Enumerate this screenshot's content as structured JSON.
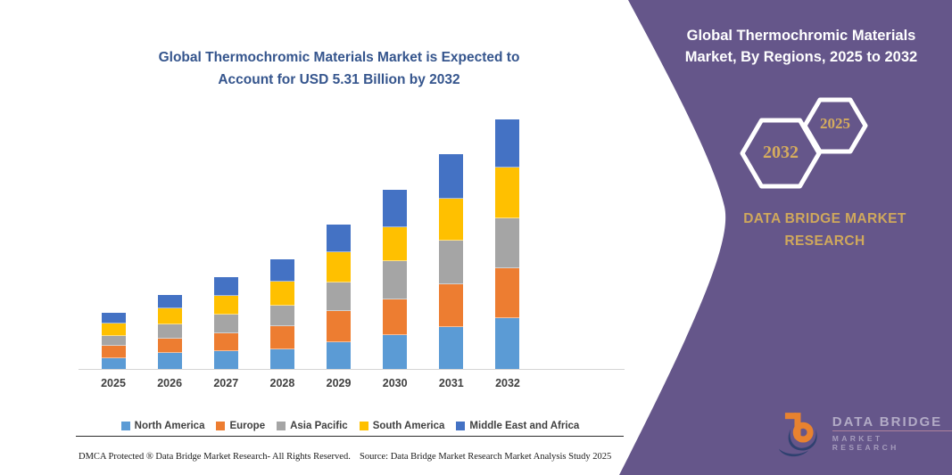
{
  "left_panel": {
    "title_line1": "Global Thermochromic Materials Market is Expected to",
    "title_line2": "Account for USD 5.31 Billion by 2032",
    "footer": {
      "dmca": "DMCA Protected ® Data Bridge Market Research-  All Rights Reserved.",
      "source": "Source: Data Bridge Market Research  Market Analysis Study 2025"
    }
  },
  "right_panel": {
    "background_color": "#65568A",
    "accent_gold": "#CFA85C",
    "title_line1": "Global Thermochromic Materials",
    "title_line2": "Market, By Regions, 2025 to 2032",
    "hexagons": {
      "big_year": "2032",
      "small_year": "2025"
    },
    "brand_line1": "DATA BRIDGE MARKET",
    "brand_line2": "RESEARCH",
    "logo": {
      "icon": "data-bridge-db-monogram-icon",
      "text_line1": "DATA BRIDGE",
      "text_line2": "MARKET RESEARCH"
    }
  },
  "chart_data": {
    "type": "bar",
    "stacked": true,
    "title": "Global Thermochromic Materials Market is Expected to Account for USD 5.31 Billion by 2032",
    "unit": "USD Billion",
    "categories": [
      "2025",
      "2026",
      "2027",
      "2028",
      "2029",
      "2030",
      "2031",
      "2032"
    ],
    "series": [
      {
        "name": "North America",
        "color": "#5B9BD5",
        "values": [
          0.24,
          0.34,
          0.38,
          0.43,
          0.58,
          0.73,
          0.91,
          1.09
        ]
      },
      {
        "name": "Europe",
        "color": "#ED7D31",
        "values": [
          0.24,
          0.29,
          0.38,
          0.47,
          0.66,
          0.76,
          0.9,
          1.06
        ]
      },
      {
        "name": "Asia Pacific",
        "color": "#A5A5A5",
        "values": [
          0.2,
          0.29,
          0.38,
          0.43,
          0.58,
          0.79,
          0.92,
          1.07
        ]
      },
      {
        "name": "South America",
        "color": "#FFC000",
        "values": [
          0.24,
          0.33,
          0.38,
          0.49,
          0.64,
          0.73,
          0.89,
          1.07
        ]
      },
      {
        "name": "Middle East and Africa",
        "color": "#4472C4",
        "values": [
          0.21,
          0.27,
          0.39,
          0.47,
          0.58,
          0.78,
          0.93,
          1.02
        ]
      }
    ],
    "totals": [
      1.13,
      1.52,
      1.91,
      2.29,
      3.04,
      3.79,
      4.55,
      5.31
    ],
    "ylim": [
      0,
      5.6
    ],
    "y_axis_visible": false,
    "gridlines": false,
    "legend_position": "bottom"
  }
}
